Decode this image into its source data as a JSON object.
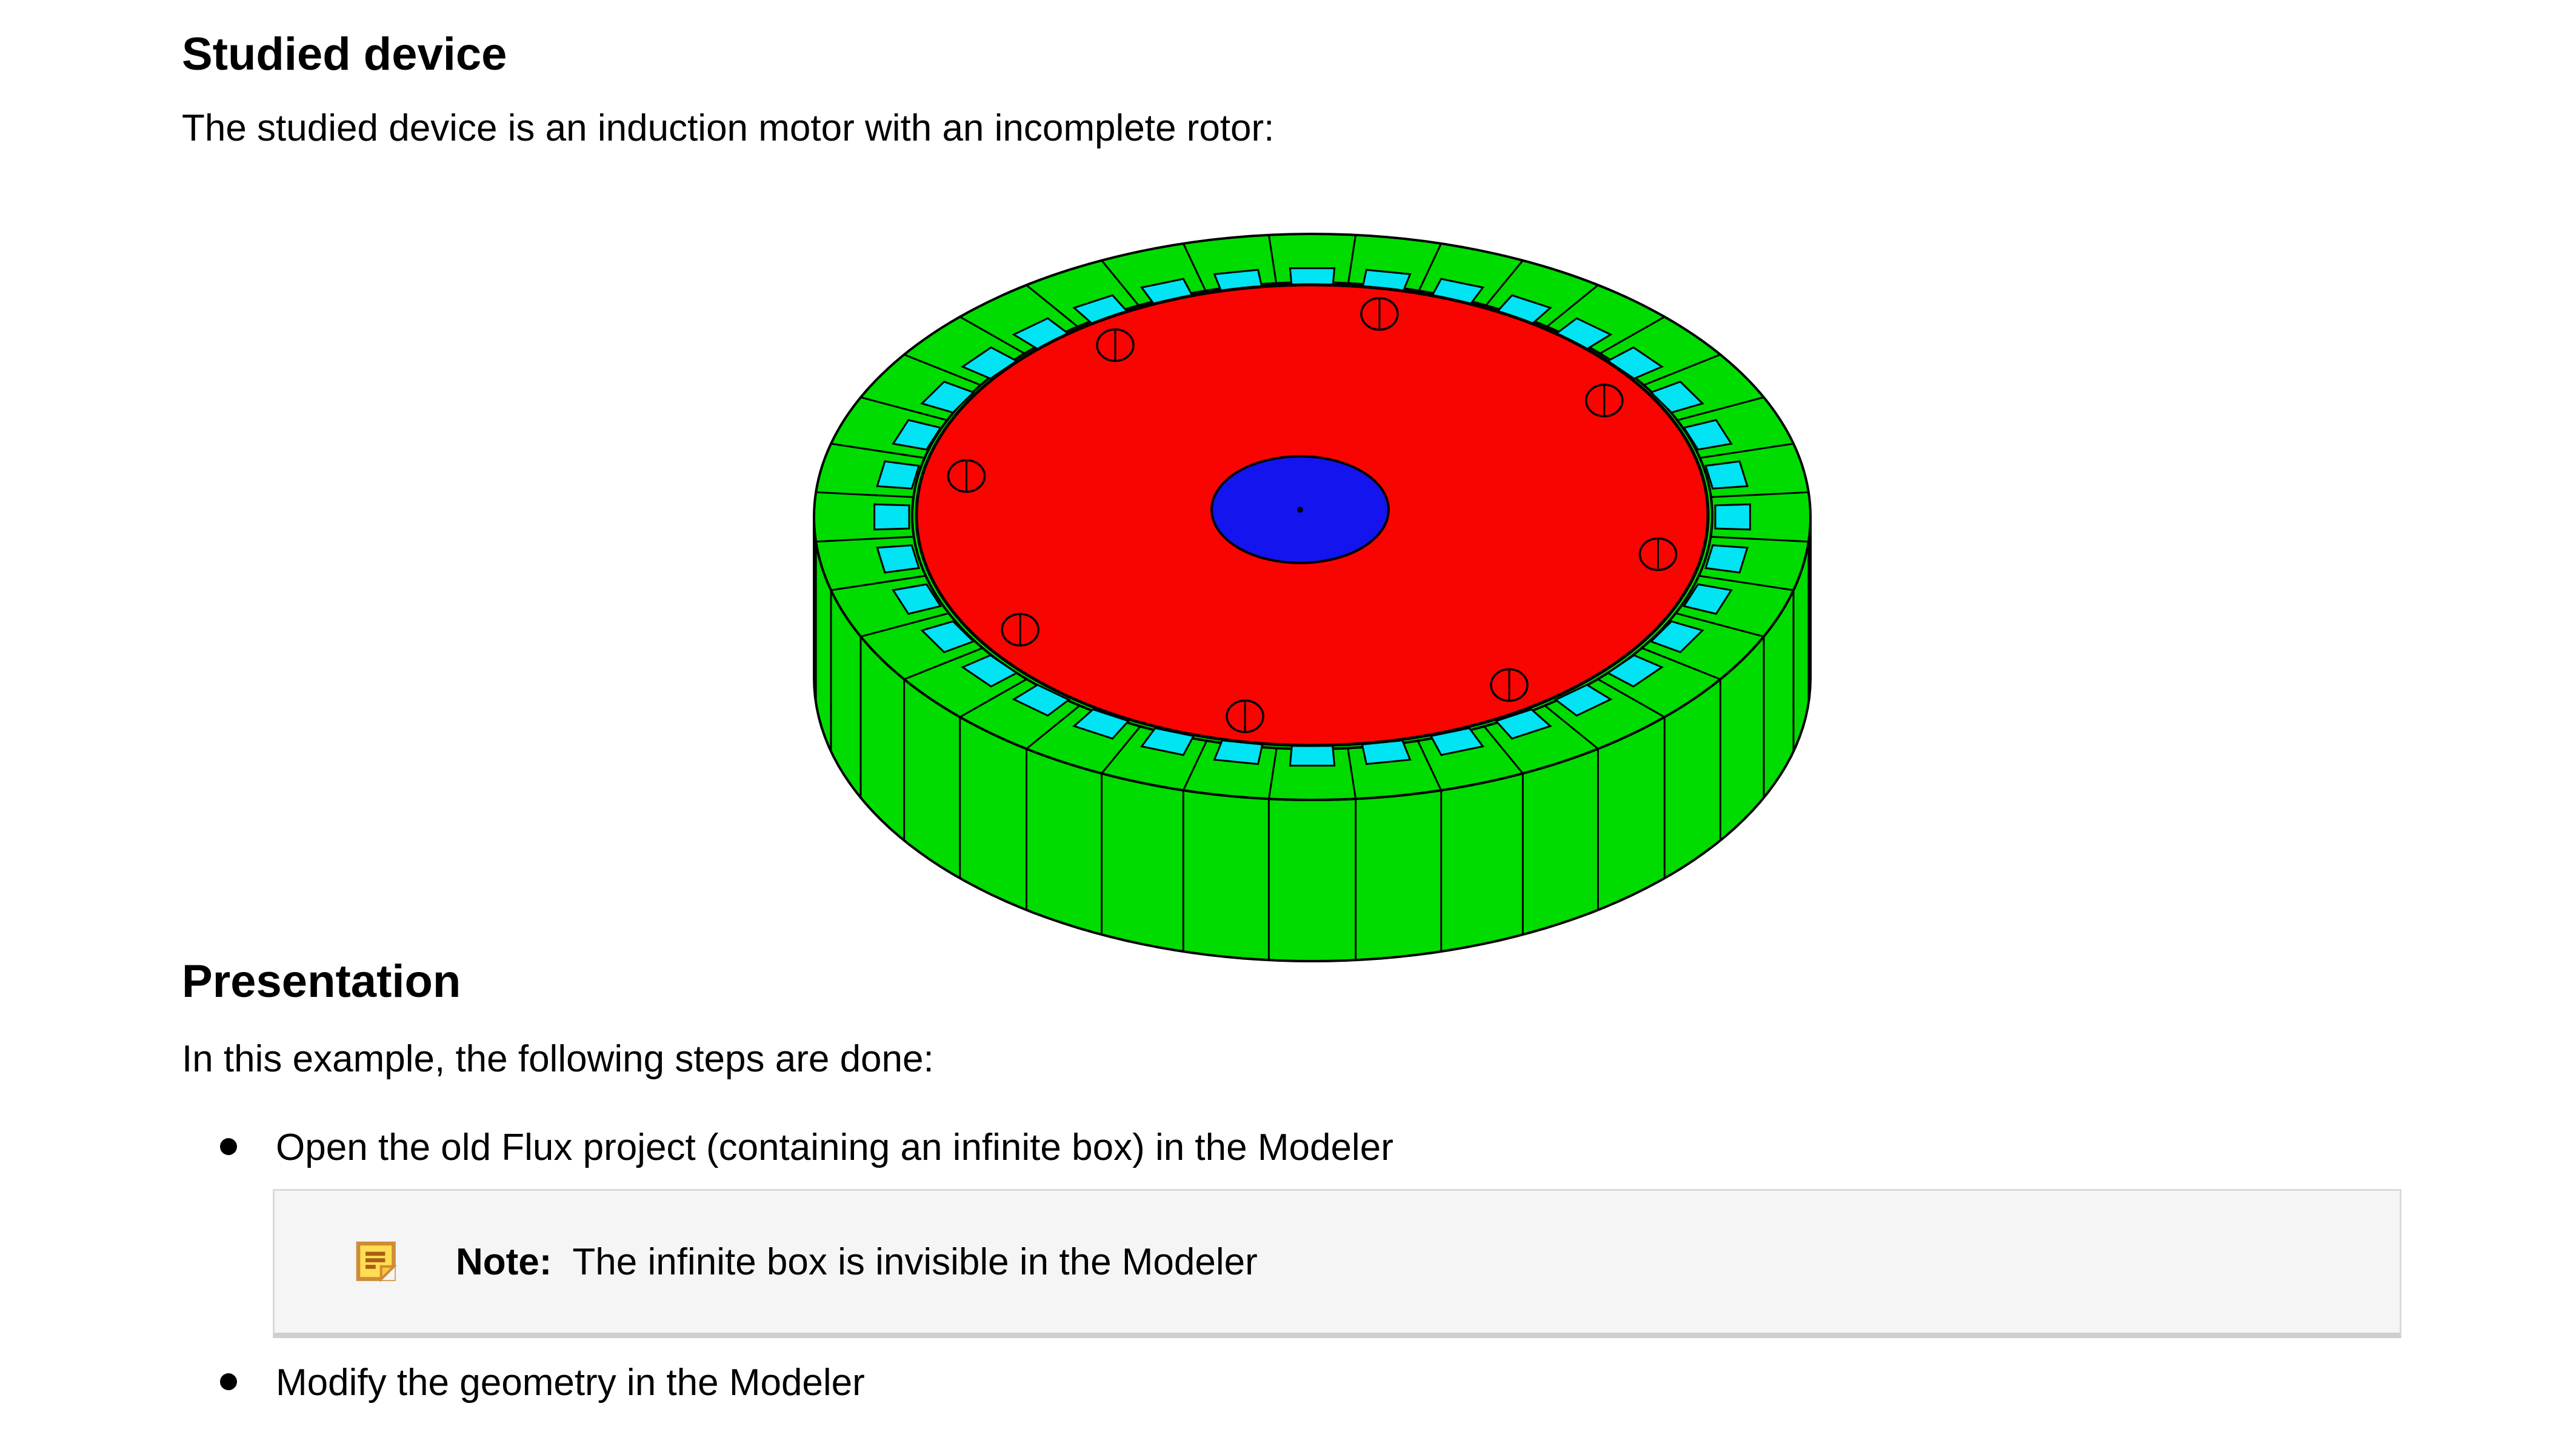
{
  "studied_device": {
    "heading": "Studied device",
    "intro": "The studied device is an induction motor with an incomplete rotor:"
  },
  "presentation": {
    "heading": "Presentation",
    "intro": "In this example, the following steps are done:",
    "bullets": [
      "Open the old Flux project (containing an infinite box) in the Modeler",
      "Modify the geometry in the Modeler"
    ]
  },
  "note": {
    "label": "Note:",
    "text": "The infinite box is invisible in the Modeler",
    "icon": "sticky-note-icon"
  },
  "figure": {
    "name": "induction-motor-3d-view",
    "description": "Induction motor with an incomplete rotor",
    "stator_slot_count": 36,
    "rotor_hole_count": 8,
    "rotor_hole_start_deg": 34,
    "colors": {
      "stator": "#00DC00",
      "rotor": "#F90400",
      "slots": "#00E4F4",
      "shaft": "#1414EE",
      "outline": "#000000",
      "note_box_bg": "#f5f5f6",
      "note_box_border": "#d9d9d9"
    }
  }
}
